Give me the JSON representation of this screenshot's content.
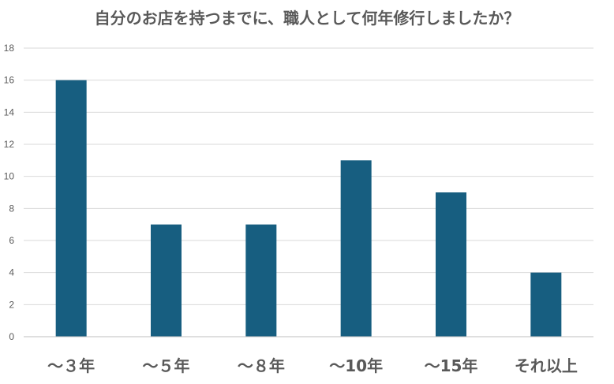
{
  "chart_data": {
    "type": "bar",
    "title": "自分のお店を持つまでに、職人として何年修行しましたか？",
    "categories": [
      "～３年",
      "～５年",
      "～８年",
      "～10年",
      "～15年",
      "それ以上"
    ],
    "values": [
      16,
      7,
      7,
      11,
      9,
      4
    ],
    "ylim": [
      0,
      18
    ],
    "yticks": [
      0,
      2,
      4,
      6,
      8,
      10,
      12,
      14,
      16,
      18
    ],
    "xlabel": "",
    "ylabel": "",
    "grid": true,
    "legend": "none",
    "bar_color": "#175e80"
  }
}
